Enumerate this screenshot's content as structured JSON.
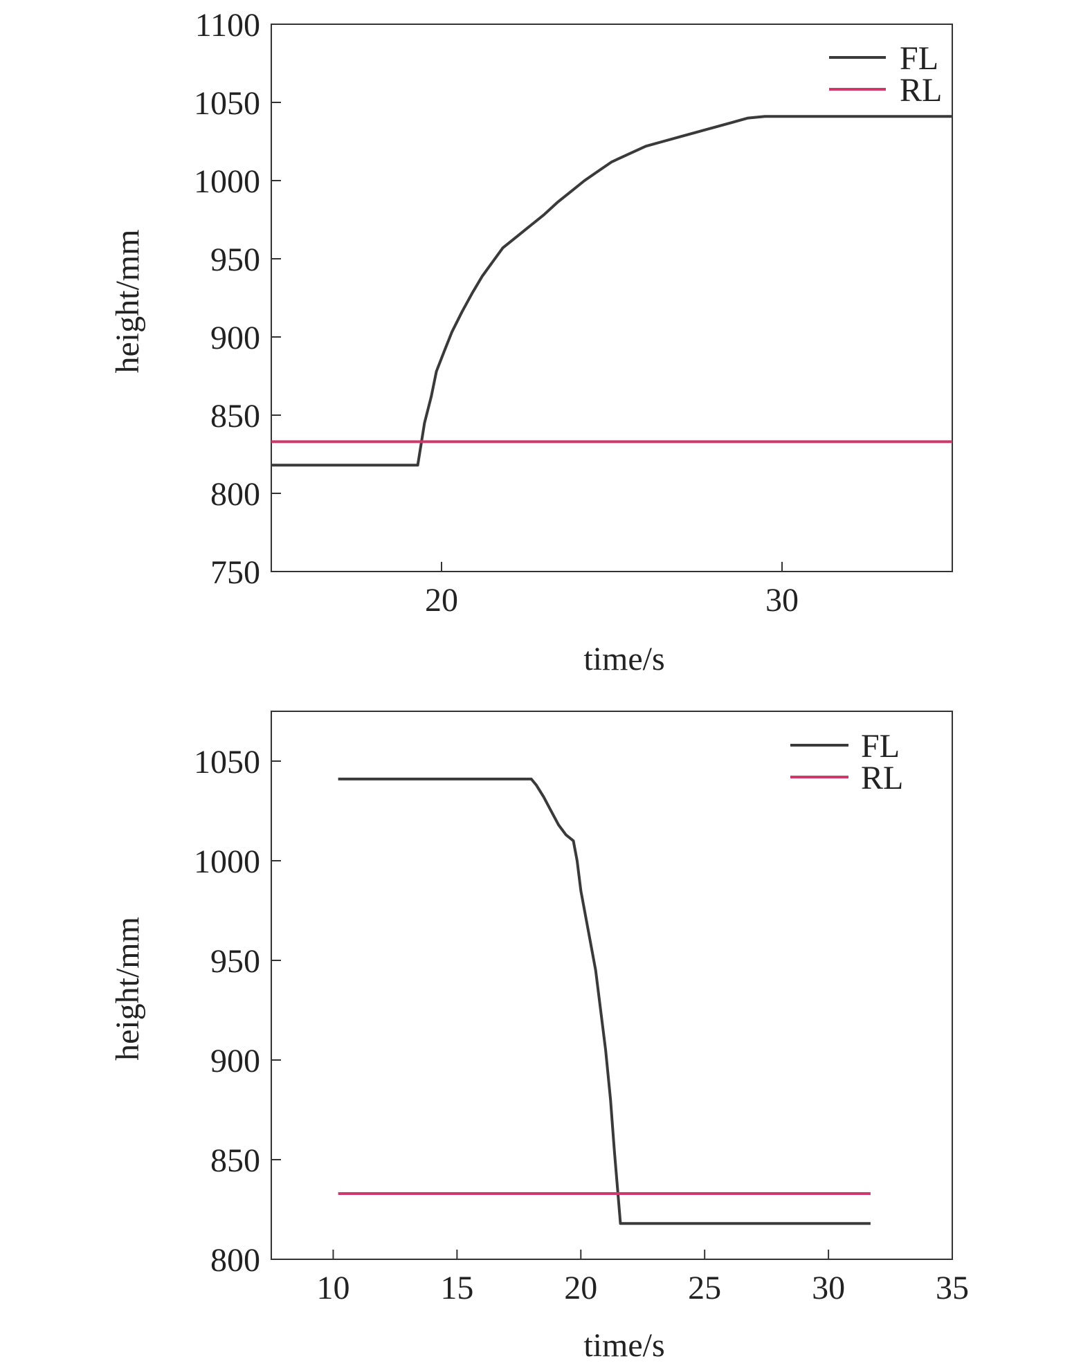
{
  "chart_data": [
    {
      "type": "line",
      "xlabel": "time/s",
      "ylabel": "height/mm",
      "xlim": [
        15,
        35
      ],
      "ylim": [
        750,
        1100
      ],
      "xticks": [
        20,
        30
      ],
      "yticks": [
        750,
        800,
        850,
        900,
        950,
        1000,
        1050,
        1100
      ],
      "legend_position": "top-right",
      "series": [
        {
          "name": "FL",
          "color": "#3a3a3a",
          "x": [
            15.0,
            19.3,
            19.5,
            19.7,
            19.85,
            20.1,
            20.3,
            20.6,
            20.9,
            21.2,
            21.5,
            21.8,
            22.2,
            22.6,
            23.0,
            23.4,
            23.8,
            24.2,
            24.6,
            25.0,
            25.5,
            26.0,
            26.5,
            27.0,
            27.5,
            28.0,
            28.5,
            29.0,
            29.5,
            30.0,
            32.0,
            35.0
          ],
          "y": [
            818,
            818,
            845,
            862,
            878,
            892,
            903,
            916,
            928,
            939,
            948,
            957,
            964,
            971,
            978,
            986,
            993,
            1000,
            1006,
            1012,
            1017,
            1022,
            1025,
            1028,
            1031,
            1034,
            1037,
            1040,
            1041,
            1041,
            1041,
            1041
          ]
        },
        {
          "name": "RL",
          "color": "#d0376a",
          "x": [
            15.0,
            35.0
          ],
          "y": [
            833,
            833
          ]
        }
      ]
    },
    {
      "type": "line",
      "xlabel": "time/s",
      "ylabel": "height/mm",
      "xlim": [
        7.5,
        35
      ],
      "ylim": [
        800,
        1075
      ],
      "xticks": [
        10,
        15,
        20,
        25,
        30,
        35
      ],
      "yticks": [
        800,
        850,
        900,
        950,
        1000,
        1050
      ],
      "legend_position": "top-right",
      "series": [
        {
          "name": "FL",
          "color": "#3a3a3a",
          "x": [
            10.2,
            18.0,
            18.2,
            18.5,
            18.8,
            19.1,
            19.4,
            19.7,
            19.85,
            20.0,
            20.3,
            20.6,
            20.8,
            21.0,
            21.2,
            21.35,
            21.5,
            21.6,
            31.7
          ],
          "y": [
            1041,
            1041,
            1038,
            1032,
            1025,
            1018,
            1013,
            1010,
            1000,
            985,
            965,
            945,
            925,
            905,
            880,
            855,
            833,
            818,
            818
          ]
        },
        {
          "name": "RL",
          "color": "#d0376a",
          "x": [
            10.2,
            31.7
          ],
          "y": [
            833,
            833
          ]
        }
      ]
    }
  ]
}
